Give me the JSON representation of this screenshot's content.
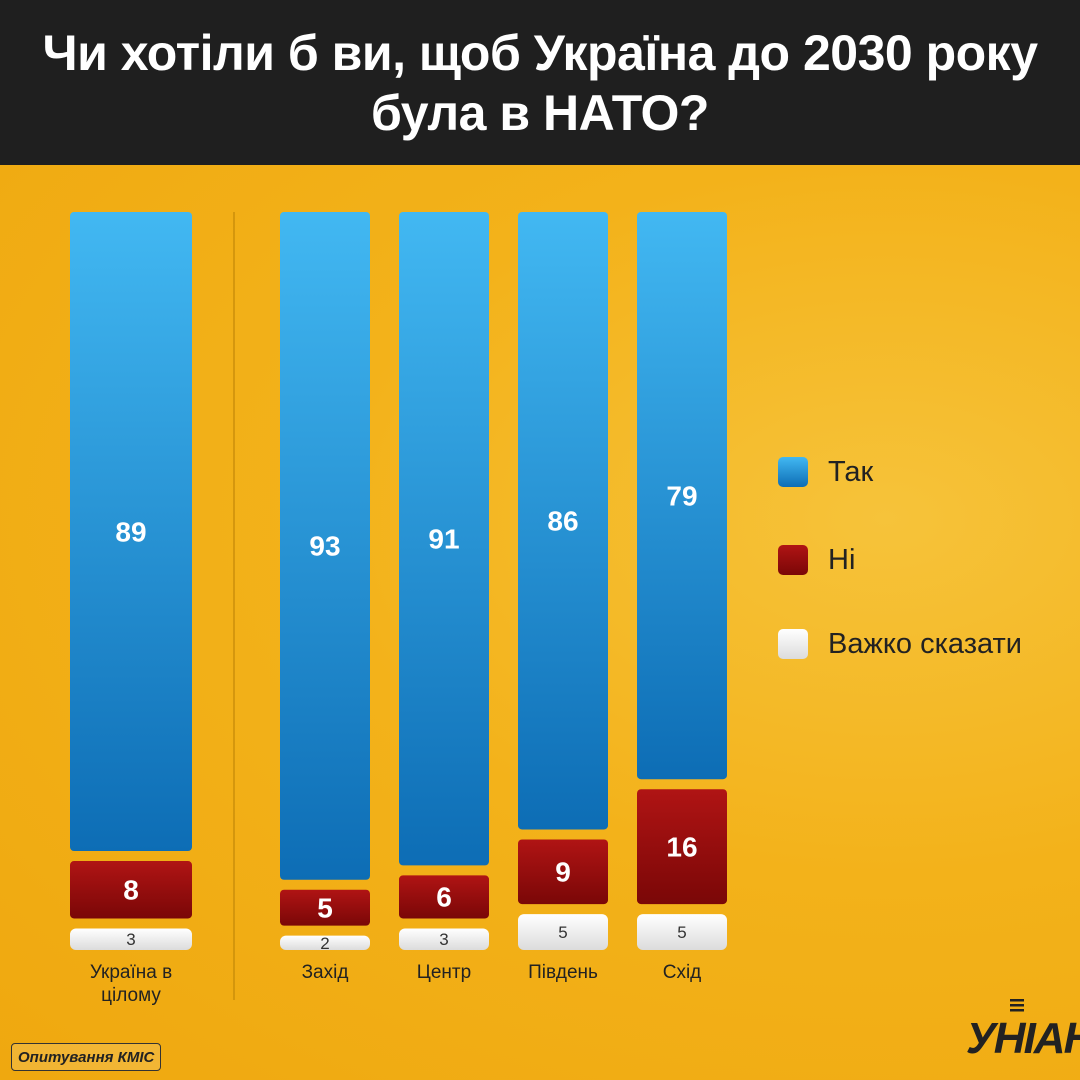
{
  "title": "Чи хотіли б ви, щоб Україна до 2030 року була в НАТО?",
  "source": "Опитування КМІС",
  "logo": "УНІАН",
  "colors": {
    "yes": "#1a8fdc",
    "no": "#a00f0f",
    "unsure": "#f4f4f4",
    "background": "#f3b21a",
    "header": "#1f1f1f"
  },
  "legend": [
    {
      "key": "yes",
      "label": "Так"
    },
    {
      "key": "no",
      "label": "Ні"
    },
    {
      "key": "unsure",
      "label": "Важко сказати"
    }
  ],
  "chart_data": {
    "type": "bar",
    "stacked": true,
    "categories": [
      "Україна в цілому",
      "Захід",
      "Центр",
      "Південь",
      "Схід"
    ],
    "series": [
      {
        "name": "Так",
        "values": [
          89,
          93,
          91,
          86,
          79
        ]
      },
      {
        "name": "Ні",
        "values": [
          8,
          5,
          6,
          9,
          16
        ]
      },
      {
        "name": "Важко сказати",
        "values": [
          3,
          2,
          3,
          5,
          5
        ]
      }
    ],
    "legend_position": "right"
  }
}
